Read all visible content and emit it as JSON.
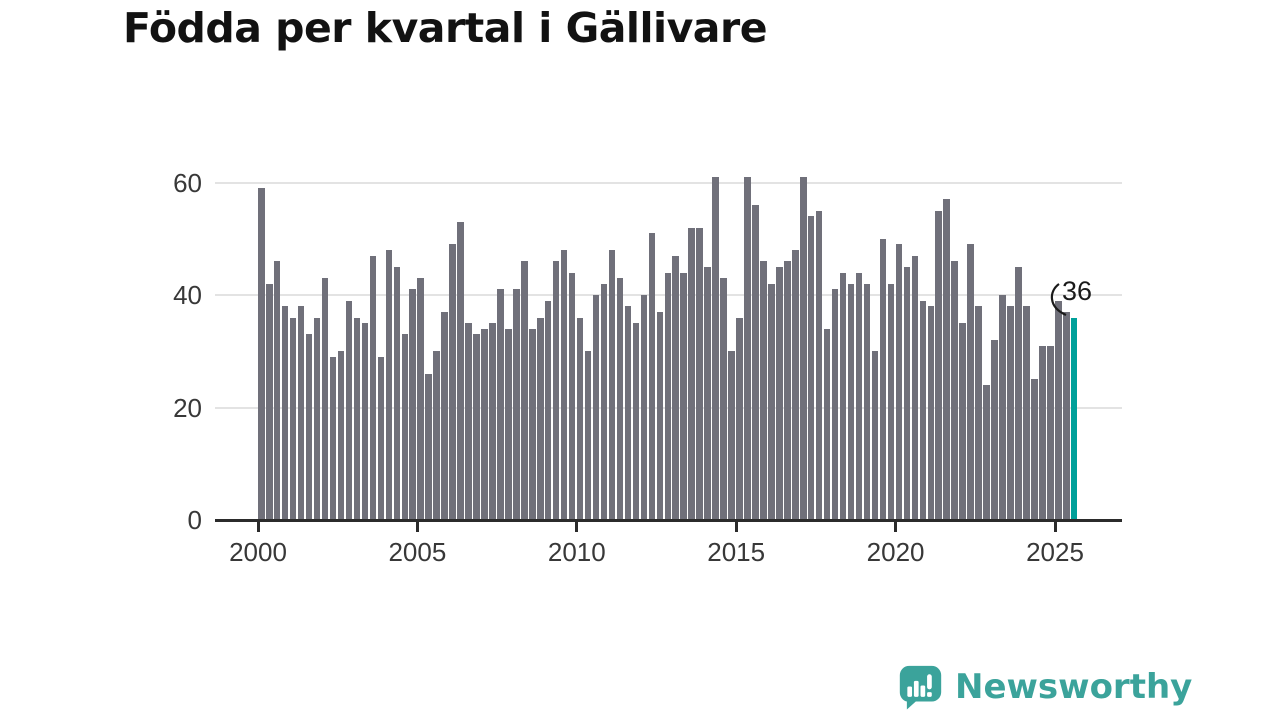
{
  "title": "Födda per kvartal i Gällivare",
  "annotation": {
    "label": "36"
  },
  "branding": {
    "name": "Newsworthy",
    "icon": "speech-bubble-bar-chart-icon"
  },
  "colors": {
    "bar": "#70707a",
    "highlight": "#00A09A",
    "title_text": "#121212",
    "axis": "#2b2b2b",
    "grid": "#e3e3e3",
    "tick_label": "#383838",
    "brand": "#3BA39B",
    "annotation_text": "#1a1a1a"
  },
  "chart_data": {
    "type": "bar",
    "title": "Födda per kvartal i Gällivare",
    "x_unit": "quarter",
    "start_period": "2000-Q1",
    "end_period": "2025-Q3",
    "xlabel": "",
    "ylabel": "",
    "ylim": [
      0,
      63
    ],
    "grid": true,
    "y_ticks": [
      0,
      20,
      40,
      60
    ],
    "x_tick_labels": [
      "2000",
      "2005",
      "2010",
      "2015",
      "2020",
      "2025"
    ],
    "quarters_per_x_tick": 20,
    "highlight_index": 102,
    "last_value_label": "36",
    "values": [
      59,
      42,
      46,
      38,
      36,
      38,
      33,
      36,
      43,
      29,
      30,
      39,
      36,
      35,
      47,
      29,
      48,
      45,
      33,
      41,
      43,
      26,
      30,
      37,
      49,
      53,
      35,
      33,
      34,
      35,
      41,
      34,
      41,
      46,
      34,
      36,
      39,
      46,
      48,
      44,
      36,
      30,
      40,
      42,
      48,
      43,
      38,
      35,
      40,
      51,
      37,
      44,
      47,
      44,
      52,
      52,
      45,
      61,
      43,
      30,
      36,
      61,
      56,
      46,
      42,
      45,
      46,
      48,
      61,
      54,
      55,
      34,
      41,
      44,
      42,
      44,
      42,
      30,
      50,
      42,
      49,
      45,
      47,
      39,
      38,
      55,
      57,
      46,
      35,
      49,
      38,
      24,
      32,
      40,
      38,
      45,
      38,
      25,
      31,
      31,
      39,
      37,
      36
    ]
  }
}
